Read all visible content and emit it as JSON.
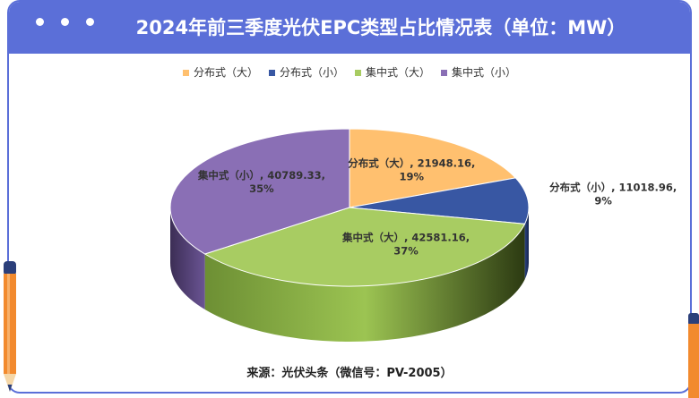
{
  "header": {
    "title": "2024年前三季度光伏EPC类型占比情况表（单位：MW）"
  },
  "chart_data": {
    "type": "pie",
    "title": "2024年前三季度光伏EPC类型占比情况表（单位：MW）",
    "legend_position": "top",
    "series": [
      {
        "name": "分布式（大）",
        "value": 21948.16,
        "percent": "19%",
        "label": "分布式（大）, 21948.16,",
        "color": "#ffc06f",
        "dark": "#c8913f"
      },
      {
        "name": "分布式（小）",
        "value": 11018.96,
        "percent": "9%",
        "label": "分布式（小）, 11018.96,",
        "color": "#3857a3",
        "dark": "#1f3570"
      },
      {
        "name": "集中式（大）",
        "value": 42581.16,
        "percent": "37%",
        "label": "集中式（大）, 42581.16,",
        "color": "#a8cc62",
        "dark": "#5f7a2a"
      },
      {
        "name": "集中式（小）",
        "value": 40789.33,
        "percent": "35%",
        "label": "集中式（小）, 40789.33,",
        "color": "#8a6fb5",
        "dark": "#4a3866"
      }
    ]
  },
  "footer": {
    "source": "来源：光伏头条（微信号：PV-2005）"
  },
  "colors": {
    "frame": "#5b6fd8",
    "pencil_orange": "#f28a2e",
    "pencil_navy": "#2b3f7a"
  }
}
